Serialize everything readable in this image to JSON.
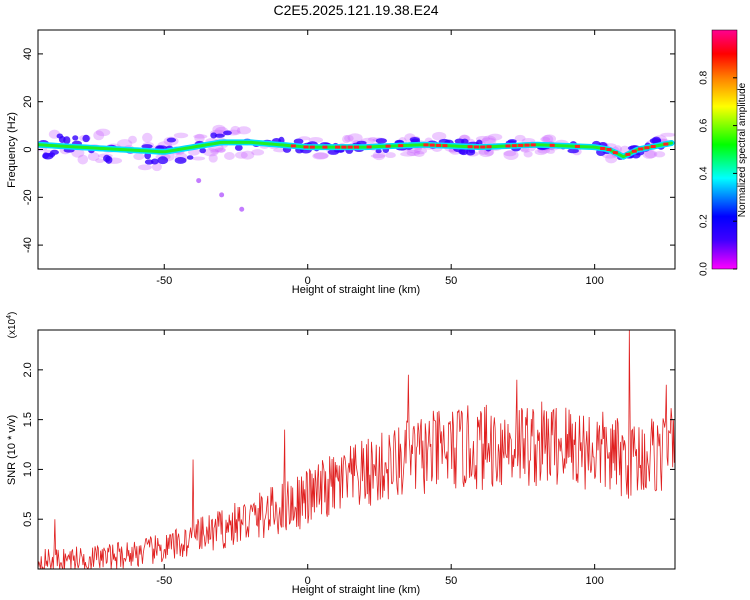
{
  "title": "C2E5.2025.121.19.38.E24",
  "chart_data": [
    {
      "type": "heatmap",
      "xlabel": "Height of straight line (km)",
      "ylabel": "Frequency (Hz)",
      "xlim": [
        -94,
        128
      ],
      "ylim": [
        -50,
        50
      ],
      "xticks": [
        -50,
        0,
        50,
        100
      ],
      "yticks": [
        -40,
        -20,
        0,
        20,
        40
      ],
      "colorbar": {
        "label": "Normalized spectral amplitude",
        "range": [
          0.0,
          1.0
        ],
        "ticks": [
          "0.0",
          "0.2",
          "0.4",
          "0.6",
          "0.8"
        ],
        "colormap": [
          "#ff00ff",
          "#0000ff",
          "#00ffff",
          "#00ff00",
          "#ffff00",
          "#ff8000",
          "#ff0000",
          "#ff00a0"
        ]
      },
      "ridge": {
        "x": [
          -94,
          -80,
          -65,
          -50,
          -40,
          -30,
          -20,
          -10,
          0,
          20,
          40,
          60,
          80,
          100,
          105,
          110,
          115,
          128
        ],
        "y": [
          2,
          1,
          0,
          -1,
          1,
          3,
          3,
          2,
          1,
          1,
          2,
          1,
          2,
          1,
          0,
          -3,
          0,
          3
        ]
      },
      "outliers": [
        {
          "x": -38,
          "y": -13
        },
        {
          "x": -30,
          "y": -19
        },
        {
          "x": -23,
          "y": -25
        }
      ]
    },
    {
      "type": "line",
      "xlabel": "Height of straight line (km)",
      "ylabel": "SNR (10 * v/v)",
      "yscale_label": "(x10",
      "yscale_exp": "4",
      "yscale_close": ")",
      "xlim": [
        -94,
        128
      ],
      "ylim": [
        0,
        2.4
      ],
      "xticks": [
        -50,
        0,
        50,
        100
      ],
      "yticks": [
        0.5,
        1.0,
        1.5,
        2.0
      ],
      "series": [
        {
          "color": "#e02020",
          "trend_x": [
            -94,
            -70,
            -60,
            -50,
            -40,
            -30,
            -20,
            -10,
            0,
            10,
            20,
            30,
            40,
            50,
            60,
            70,
            80,
            90,
            100,
            110,
            120,
            128
          ],
          "trend_y": [
            0.08,
            0.12,
            0.16,
            0.2,
            0.3,
            0.4,
            0.5,
            0.6,
            0.72,
            0.85,
            0.95,
            1.05,
            1.15,
            1.2,
            1.22,
            1.25,
            1.25,
            1.25,
            1.2,
            1.1,
            1.15,
            1.2
          ],
          "peaks": [
            {
              "x": -88,
              "y": 0.5
            },
            {
              "x": -40,
              "y": 1.1
            },
            {
              "x": -8,
              "y": 1.4
            },
            {
              "x": 35,
              "y": 1.95
            },
            {
              "x": 73,
              "y": 1.9
            },
            {
              "x": 112,
              "y": 2.4
            },
            {
              "x": 125,
              "y": 1.85
            }
          ]
        }
      ]
    }
  ]
}
